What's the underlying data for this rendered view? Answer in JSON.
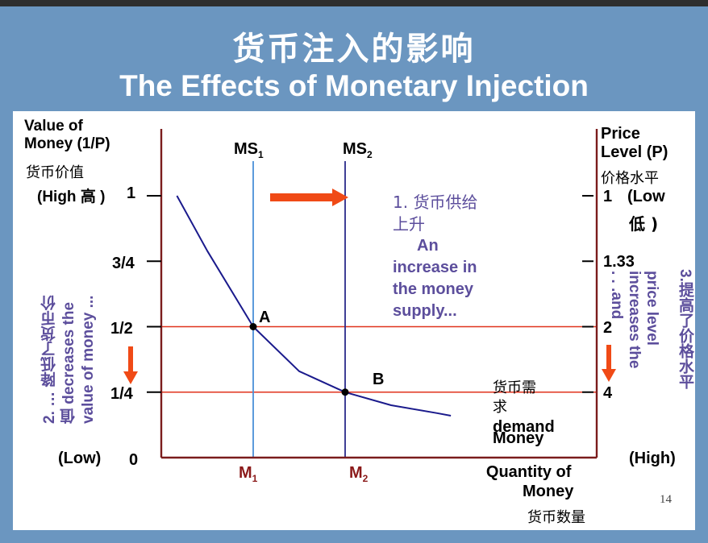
{
  "slide": {
    "title_cn": "货币注入的影响",
    "title_en": "The Effects of Monetary Injection",
    "page_number": "14"
  },
  "left_axis": {
    "label_line1": "Value of",
    "label_line2": "Money (1/P)",
    "label_cn": "货币价值",
    "high_label": "(High 高 )",
    "low_label": "(Low)",
    "ticks": [
      "1",
      "3/4",
      "1/2",
      "1/4",
      "0"
    ]
  },
  "right_axis": {
    "label_line1": "Price",
    "label_line2": "Level (P)",
    "label_cn": "价格水平",
    "tick_1": "1",
    "low_label": "(Low",
    "low_cn": "低 )",
    "tick_133": "1.33",
    "tick_2": "2",
    "tick_4": "4",
    "high_label": "(High)"
  },
  "x_axis": {
    "label_line1": "Quantity of",
    "label_line2": "Money",
    "label_cn": "货币数量",
    "m1_main": "M",
    "m1_sub": "1",
    "m2_main": "M",
    "m2_sub": "2"
  },
  "supply_labels": {
    "ms1_main": "MS",
    "ms1_sub": "1",
    "ms2_main": "MS",
    "ms2_sub": "2"
  },
  "annotations": {
    "step1_cn": "1. 货币供给",
    "step1_cn2": "上升",
    "step1_en1": "An",
    "step1_en2": "increase in",
    "step1_en3": "the money",
    "step1_en4": "supply...",
    "step2_cn": "2. … 降低了货币价",
    "step2_cn2": "值 decreases the",
    "step2_en": "value of money ...",
    "step3_cn": "3.提高了价格水平",
    "step3_en1": ". . .and",
    "step3_en2": "increases the",
    "step3_en3": "price level",
    "demand_cn1": "货币需",
    "demand_cn2": "求",
    "demand_en1": "Money",
    "demand_en2": "demand",
    "point_a": "A",
    "point_b": "B"
  },
  "colors": {
    "header": "#6b96c0",
    "axis": "#7b1c1c",
    "supply_ms1": "#4a90d9",
    "supply_ms2": "#2a2a8a",
    "demand_curve": "#1a1a8c",
    "guideline": "#e0321c",
    "arrow": "#f04a16",
    "annotation_text": "#5c4e9c"
  },
  "chart_data": {
    "type": "line",
    "title": "The Effects of Monetary Injection",
    "xlabel": "Quantity of Money",
    "ylabel": "Value of Money (1/P)",
    "y2label": "Price Level (P)",
    "y_ticks": [
      {
        "value": 1,
        "label": "1",
        "price_label": "1"
      },
      {
        "value": 0.75,
        "label": "3/4",
        "price_label": "1.33"
      },
      {
        "value": 0.5,
        "label": "1/2",
        "price_label": "2"
      },
      {
        "value": 0.25,
        "label": "1/4",
        "price_label": "4"
      },
      {
        "value": 0,
        "label": "0",
        "price_label": ""
      }
    ],
    "ylim": [
      0,
      1
    ],
    "x_ticks": [
      {
        "name": "M1",
        "value": 1
      },
      {
        "name": "M2",
        "value": 2
      }
    ],
    "xlim": [
      0,
      4
    ],
    "series": [
      {
        "name": "MS1",
        "kind": "vertical",
        "x": 1
      },
      {
        "name": "MS2",
        "kind": "vertical",
        "x": 2
      },
      {
        "name": "Money demand",
        "kind": "curve",
        "x": [
          0.17,
          0.5,
          1,
          1.5,
          2,
          2.5,
          3,
          3.15
        ],
        "y": [
          1.0,
          0.79,
          0.5,
          0.33,
          0.25,
          0.2,
          0.17,
          0.16
        ]
      }
    ],
    "points": [
      {
        "name": "A",
        "x": 1,
        "y": 0.5
      },
      {
        "name": "B",
        "x": 2,
        "y": 0.25
      }
    ],
    "guidelines_y": [
      0.5,
      0.25
    ],
    "grid": false
  }
}
